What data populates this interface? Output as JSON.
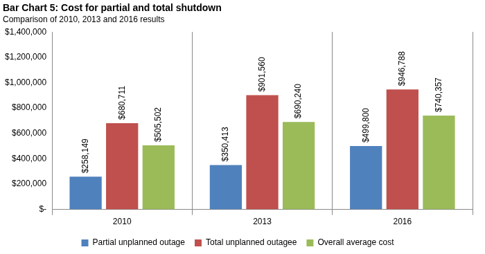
{
  "chart_data": {
    "type": "bar",
    "title": "Bar Chart 5: Cost for partial and total shutdown",
    "subtitle": "Comparison of 2010, 2013 and 2016 results",
    "categories": [
      "2010",
      "2013",
      "2016"
    ],
    "series": [
      {
        "name": "Partial unplanned outage",
        "color": "#4f81bd",
        "values": [
          258149,
          350413,
          499800
        ],
        "value_labels": [
          "$258,149",
          "$350,413",
          "$499,800"
        ]
      },
      {
        "name": "Total unplanned outagee",
        "color": "#c0504d",
        "values": [
          680711,
          901560,
          946788
        ],
        "value_labels": [
          "$680,711",
          "$901,560",
          "$946,788"
        ]
      },
      {
        "name": "Overall average cost",
        "color": "#9bbb59",
        "values": [
          505502,
          690240,
          740357
        ],
        "value_labels": [
          "$505,502",
          "$690,240",
          "$740,357"
        ]
      }
    ],
    "ylim": [
      0,
      1400000
    ],
    "yticks": [
      {
        "value": 0,
        "label": "$-"
      },
      {
        "value": 200000,
        "label": "$200,000"
      },
      {
        "value": 400000,
        "label": "$400,000"
      },
      {
        "value": 600000,
        "label": "$600,000"
      },
      {
        "value": 800000,
        "label": "$800,000"
      },
      {
        "value": 1000000,
        "label": "$1,000,000"
      },
      {
        "value": 1200000,
        "label": "$1,200,000"
      },
      {
        "value": 1400000,
        "label": "$1,400,000"
      }
    ],
    "grid": false,
    "legend": "bottom",
    "data_labels": true
  }
}
